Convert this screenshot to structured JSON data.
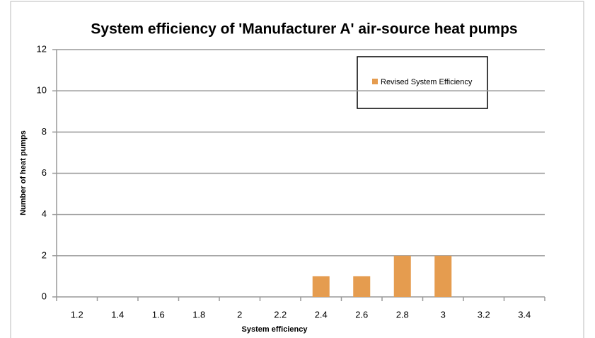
{
  "chart_data": {
    "type": "bar",
    "title": "System efficiency  of 'Manufacturer A' air-source heat pumps",
    "x_label": "System efficiency",
    "y_label": "Number of heat pumps",
    "categories": [
      "1.2",
      "1.4",
      "1.6",
      "1.8",
      "2",
      "2.2",
      "2.4",
      "2.6",
      "2.8",
      "3",
      "3.2",
      "3.4"
    ],
    "series": [
      {
        "name": "Revised System Efficiency",
        "color": "#e59c4f",
        "values": [
          0,
          0,
          0,
          0,
          0,
          0,
          1,
          1,
          2,
          2,
          0,
          0
        ]
      }
    ],
    "ylim": [
      0,
      12
    ],
    "yticks": [
      0,
      2,
      4,
      6,
      8,
      10,
      12
    ],
    "grid": true,
    "legend": "top-right"
  }
}
